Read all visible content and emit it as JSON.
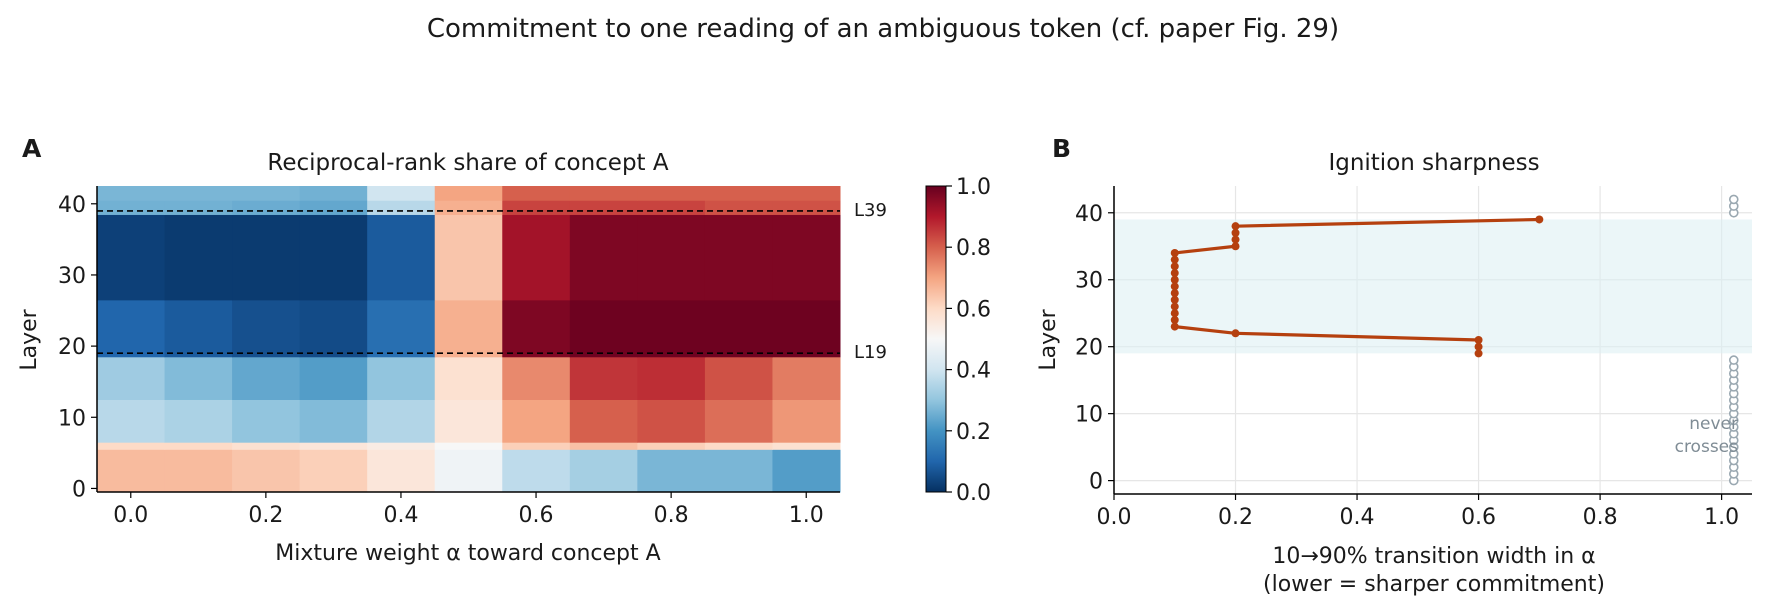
{
  "figure": {
    "title": "Commitment to one reading of an ambiguous token (cf. paper Fig. 29)"
  },
  "panels": {
    "a": {
      "label": "A",
      "title": "Reciprocal-rank share of concept A",
      "xlabel": "Mixture weight α toward concept A",
      "ylabel": "Layer",
      "annotations": [
        "L39",
        "L19"
      ]
    },
    "b": {
      "label": "B",
      "title": "Ignition sharpness",
      "xlabel": "10→90% transition width in α",
      "xlabel2": "(lower = sharper commitment)",
      "ylabel": "Layer",
      "never_label": "never",
      "never_label2": "crosses"
    }
  },
  "colors": {
    "line": "#b5400f",
    "band": "#daeef3",
    "never_marker": "#9aa8b1",
    "grid": "#e6e6e6"
  },
  "chart_data": [
    {
      "type": "heatmap",
      "title": "Reciprocal-rank share of concept A",
      "xlabel": "Mixture weight α toward concept A",
      "ylabel": "Layer",
      "colormap": "RdBu_r",
      "color_range": [
        0,
        1
      ],
      "colorbar_ticks": [
        "0.0",
        "0.2",
        "0.4",
        "0.6",
        "0.8",
        "1.0"
      ],
      "x": [
        0.0,
        0.1,
        0.2,
        0.3,
        0.4,
        0.5,
        0.6,
        0.7,
        0.8,
        0.9,
        1.0
      ],
      "x_ticks": [
        "0.0",
        "0.2",
        "0.4",
        "0.6",
        "0.8",
        "1.0"
      ],
      "y_ticks": [
        "0",
        "10",
        "20",
        "30",
        "40"
      ],
      "xlim": [
        -0.05,
        1.05
      ],
      "ylim": [
        -0.5,
        42.5
      ],
      "reference_lines": [
        {
          "layer": 39,
          "label": "L39",
          "style": "dashed"
        },
        {
          "layer": 19,
          "label": "L19",
          "style": "dashed"
        }
      ],
      "bands": [
        {
          "layers": [
            0,
            5
          ],
          "values": [
            0.66,
            0.66,
            0.64,
            0.62,
            0.56,
            0.48,
            0.37,
            0.33,
            0.27,
            0.27,
            0.22
          ]
        },
        {
          "layers": [
            6,
            6
          ],
          "values": [
            0.6,
            0.6,
            0.58,
            0.56,
            0.54,
            0.5,
            0.62,
            0.65,
            0.62,
            0.6,
            0.58
          ]
        },
        {
          "layers": [
            7,
            12
          ],
          "values": [
            0.36,
            0.34,
            0.3,
            0.28,
            0.35,
            0.56,
            0.7,
            0.8,
            0.82,
            0.78,
            0.72
          ]
        },
        {
          "layers": [
            13,
            18
          ],
          "values": [
            0.32,
            0.28,
            0.24,
            0.22,
            0.3,
            0.58,
            0.74,
            0.86,
            0.87,
            0.82,
            0.76
          ]
        },
        {
          "layers": [
            19,
            26
          ],
          "values": [
            0.1,
            0.08,
            0.06,
            0.05,
            0.12,
            0.68,
            0.97,
            0.99,
            0.99,
            0.99,
            0.99
          ]
        },
        {
          "layers": [
            27,
            38
          ],
          "values": [
            0.03,
            0.02,
            0.02,
            0.02,
            0.08,
            0.64,
            0.92,
            0.97,
            0.97,
            0.97,
            0.97
          ]
        },
        {
          "layers": [
            39,
            40
          ],
          "values": [
            0.26,
            0.26,
            0.25,
            0.24,
            0.36,
            0.68,
            0.84,
            0.84,
            0.84,
            0.82,
            0.82
          ]
        },
        {
          "layers": [
            41,
            42
          ],
          "values": [
            0.27,
            0.27,
            0.27,
            0.26,
            0.4,
            0.7,
            0.8,
            0.8,
            0.8,
            0.8,
            0.8
          ]
        }
      ]
    },
    {
      "type": "line",
      "title": "Ignition sharpness",
      "xlabel": "10→90% transition width in α (lower = sharper commitment)",
      "ylabel": "Layer",
      "xlim": [
        0,
        1.05
      ],
      "ylim": [
        -2,
        44
      ],
      "x_ticks": [
        "0.0",
        "0.2",
        "0.4",
        "0.6",
        "0.8",
        "1.0"
      ],
      "y_ticks": [
        "0",
        "10",
        "20",
        "30",
        "40"
      ],
      "grid": true,
      "shaded_band": {
        "layers": [
          19,
          39
        ]
      },
      "series": [
        {
          "points": [
            {
              "layer": 19,
              "width": 0.6
            },
            {
              "layer": 20,
              "width": 0.6
            },
            {
              "layer": 21,
              "width": 0.6
            },
            {
              "layer": 22,
              "width": 0.2
            },
            {
              "layer": 23,
              "width": 0.1
            },
            {
              "layer": 24,
              "width": 0.1
            },
            {
              "layer": 25,
              "width": 0.1
            },
            {
              "layer": 26,
              "width": 0.1
            },
            {
              "layer": 27,
              "width": 0.1
            },
            {
              "layer": 28,
              "width": 0.1
            },
            {
              "layer": 29,
              "width": 0.1
            },
            {
              "layer": 30,
              "width": 0.1
            },
            {
              "layer": 31,
              "width": 0.1
            },
            {
              "layer": 32,
              "width": 0.1
            },
            {
              "layer": 33,
              "width": 0.1
            },
            {
              "layer": 34,
              "width": 0.1
            },
            {
              "layer": 35,
              "width": 0.2
            },
            {
              "layer": 36,
              "width": 0.2
            },
            {
              "layer": 37,
              "width": 0.2
            },
            {
              "layer": 38,
              "width": 0.2
            },
            {
              "layer": 39,
              "width": 0.7
            }
          ]
        }
      ],
      "never_crosses": {
        "x": 1.02,
        "layers": [
          0,
          1,
          2,
          3,
          4,
          5,
          6,
          7,
          8,
          9,
          10,
          11,
          12,
          13,
          14,
          15,
          16,
          17,
          18,
          40,
          41,
          42
        ]
      }
    }
  ]
}
